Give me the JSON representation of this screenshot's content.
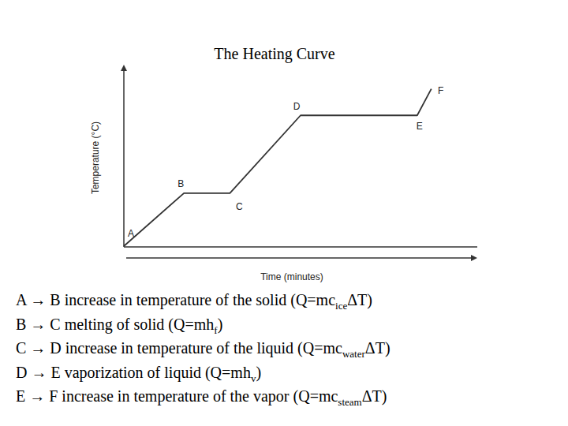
{
  "chart_data": {
    "type": "line",
    "title": "The Heating Curve",
    "x_label": "Time (minutes)",
    "y_label": "Temperature (°C)",
    "x": [
      0,
      17,
      30,
      50,
      83,
      87
    ],
    "values": [
      0,
      30,
      30,
      74,
      74,
      89
    ],
    "point_labels": [
      "A",
      "B",
      "C",
      "D",
      "E",
      "F"
    ],
    "xlim": [
      0,
      100
    ],
    "ylim": [
      0,
      100
    ],
    "color": "#333333",
    "tick_labels": false
  },
  "notes": [
    [
      {
        "text": "A → B increase in temperature of the solid  (Q=mc"
      },
      {
        "sub": "ice"
      },
      {
        "text": "ΔT)"
      }
    ],
    [
      {
        "text": "B → C melting of solid  (Q=mh"
      },
      {
        "sub": "f"
      },
      {
        "text": ")"
      }
    ],
    [
      {
        "text": "C → D increase in temperature of the liquid  (Q=mc"
      },
      {
        "sub": "water"
      },
      {
        "text": "ΔT)"
      }
    ],
    [
      {
        "text": "D → E vaporization of liquid  (Q=mh"
      },
      {
        "sub": "v"
      },
      {
        "text": ")"
      }
    ],
    [
      {
        "text": "E → F increase in temperature of the vapor  (Q=mc"
      },
      {
        "sub": "steam"
      },
      {
        "text": "ΔT)"
      }
    ]
  ]
}
